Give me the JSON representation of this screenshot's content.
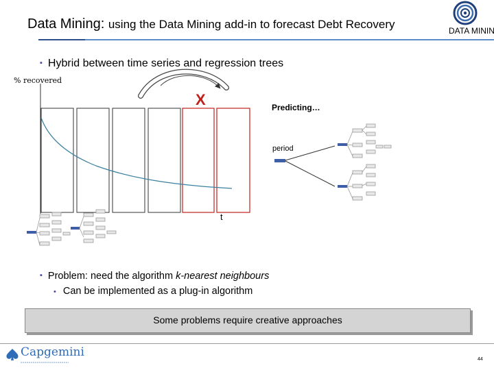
{
  "title": {
    "strong": "Data Mining:",
    "rest": "using the Data Mining add-in to forecast Debt Recovery"
  },
  "logo": {
    "text": "DATA MININ"
  },
  "bullets": [
    "Hybrid between time series and regression trees"
  ],
  "diagram": {
    "y_label": "% recovered",
    "x_mark": "X",
    "predicting": "Predicting…",
    "period": "period",
    "t_label": "t"
  },
  "problem": {
    "prefix": "Problem: need the algorithm ",
    "emphasis": "k-nearest neighbours",
    "sub": "Can be implemented as a plug-in algorithm"
  },
  "callout": "Some problems require creative approaches",
  "footer": {
    "brand": "Capgemini",
    "page": "44"
  },
  "colors": {
    "accent_blue": "#5a8cc8",
    "highlight_red": "#c0201a",
    "curve": "#3a7fa0"
  }
}
